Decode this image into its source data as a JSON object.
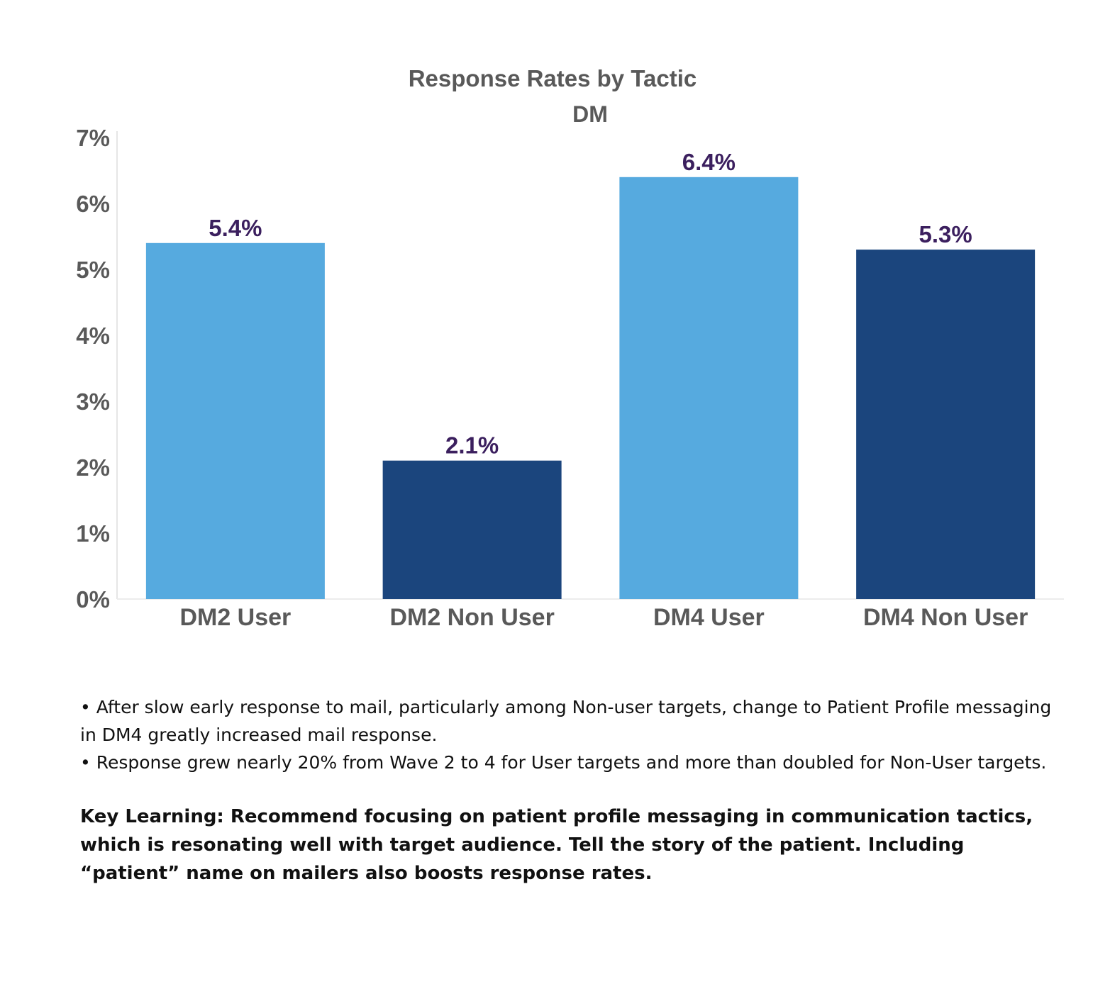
{
  "colors": {
    "light_bar": "#56aadf",
    "dark_bar": "#1b457d",
    "value_label": "#3b1f5e",
    "axis_text": "#595959"
  },
  "chart_data": {
    "type": "bar",
    "title": "Response Rates by Tactic",
    "subtitle": "DM",
    "categories": [
      "DM2 User",
      "DM2 Non User",
      "DM4 User",
      "DM4 Non User"
    ],
    "values": [
      5.4,
      2.1,
      6.4,
      5.3
    ],
    "value_labels": [
      "5.4%",
      "2.1%",
      "6.4%",
      "5.3%"
    ],
    "bar_colors": [
      "#56aadf",
      "#1b457d",
      "#56aadf",
      "#1b457d"
    ],
    "ylim": [
      0,
      7
    ],
    "yticks": [
      0,
      1,
      2,
      3,
      4,
      5,
      6,
      7
    ],
    "ytick_labels": [
      "0%",
      "1%",
      "2%",
      "3%",
      "4%",
      "5%",
      "6%",
      "7%"
    ],
    "xlabel": "",
    "ylabel": "",
    "grid": false,
    "legend": "none"
  },
  "notes": {
    "bullets": [
      "• After slow early response to mail, particularly among Non-user targets, change to Patient Profile messaging in DM4 greatly increased mail response.",
      "• Response grew nearly 20% from Wave 2 to 4 for User targets and more than doubled for Non-User targets."
    ],
    "key_learning": "Key Learning:  Recommend focusing on patient profile messaging in communication tactics, which is resonating well with target audience. Tell the story of the patient. Including “patient” name on mailers also boosts response rates."
  }
}
